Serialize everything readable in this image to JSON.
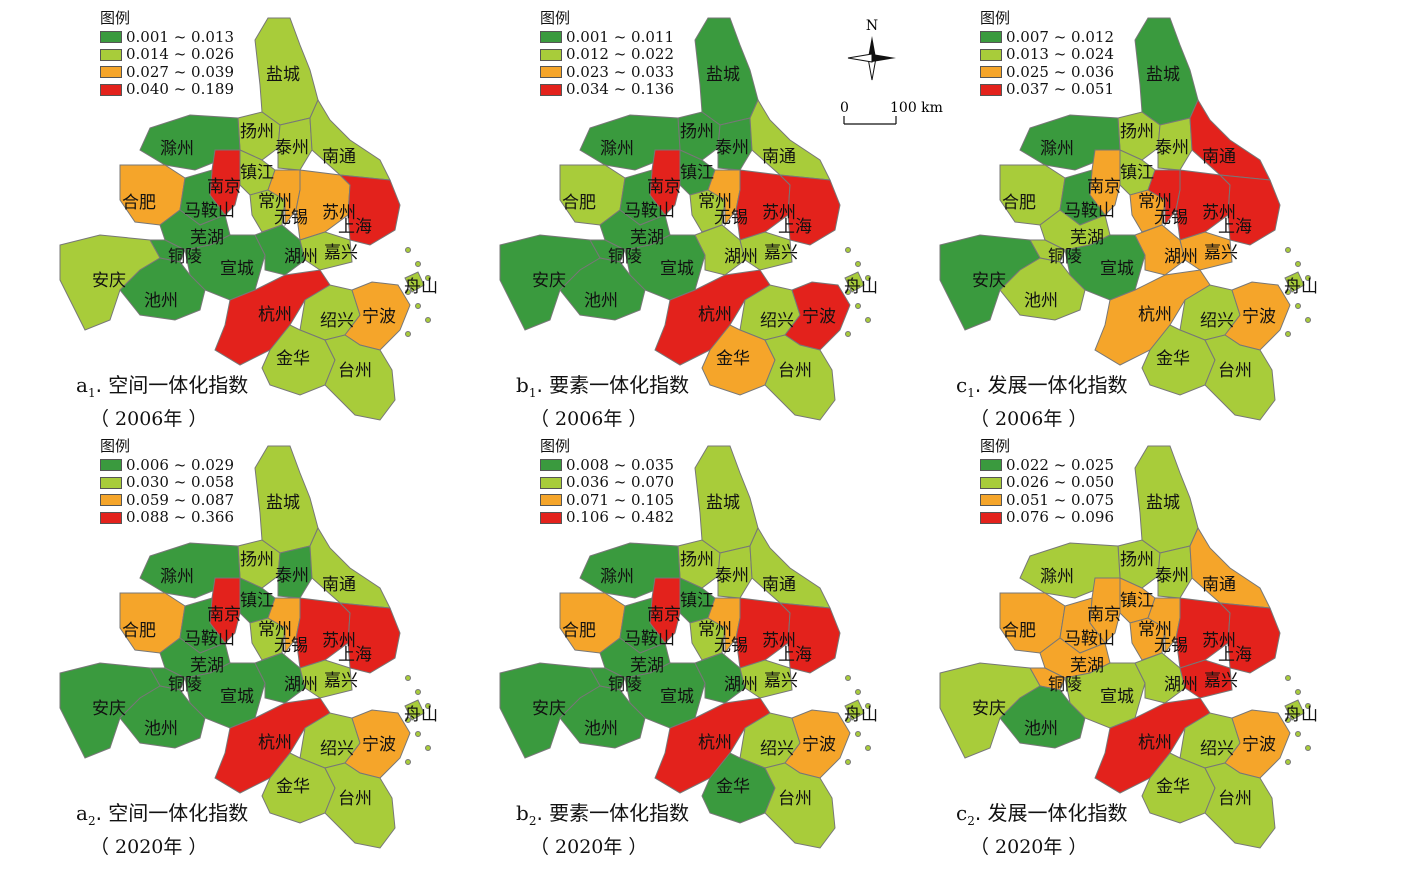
{
  "colors": {
    "c1": "#3a9a3e",
    "c2": "#a8cc3a",
    "c3": "#f5a52a",
    "c4": "#e3221c",
    "border": "#777777",
    "sea": "#ffffff"
  },
  "legend_title": "图例",
  "compass": {
    "north": "N",
    "scale_start": "0",
    "scale_end": "100 km"
  },
  "cities": [
    "盐城",
    "扬州",
    "泰州",
    "南通",
    "滁州",
    "南京",
    "镇江",
    "常州",
    "合肥",
    "马鞍山",
    "无锡",
    "苏州",
    "上海",
    "芜湖",
    "铜陵",
    "宣城",
    "湖州",
    "嘉兴",
    "安庆",
    "池州",
    "杭州",
    "绍兴",
    "宁波",
    "舟山",
    "金华",
    "台州"
  ],
  "panels": [
    {
      "id": "a1",
      "prefix": "a",
      "sub": "1",
      "title": ". 空间一体化指数",
      "year": "（ 2006年 ）",
      "legend": [
        "0.001 ~ 0.013",
        "0.014 ~ 0.026",
        "0.027 ~ 0.039",
        "0.040 ~ 0.189"
      ],
      "classes": {
        "盐城": 2,
        "扬州": 2,
        "泰州": 2,
        "南通": 2,
        "滁州": 1,
        "南京": 4,
        "镇江": 2,
        "常州": 2,
        "合肥": 3,
        "马鞍山": 1,
        "无锡": 3,
        "苏州": 3,
        "上海": 4,
        "芜湖": 1,
        "铜陵": 1,
        "宣城": 1,
        "湖州": 1,
        "嘉兴": 2,
        "安庆": 2,
        "池州": 1,
        "杭州": 4,
        "绍兴": 2,
        "宁波": 3,
        "舟山": 2,
        "金华": 2,
        "台州": 2
      }
    },
    {
      "id": "b1",
      "prefix": "b",
      "sub": "1",
      "title": ". 要素一体化指数",
      "year": "（ 2006年 ）",
      "legend": [
        "0.001 ~ 0.011",
        "0.012 ~ 0.022",
        "0.023 ~ 0.033",
        "0.034 ~ 0.136"
      ],
      "classes": {
        "盐城": 1,
        "扬州": 1,
        "泰州": 1,
        "南通": 2,
        "滁州": 1,
        "南京": 4,
        "镇江": 1,
        "常州": 2,
        "合肥": 2,
        "马鞍山": 1,
        "无锡": 3,
        "苏州": 4,
        "上海": 4,
        "芜湖": 1,
        "铜陵": 1,
        "宣城": 1,
        "湖州": 2,
        "嘉兴": 2,
        "安庆": 1,
        "池州": 1,
        "杭州": 4,
        "绍兴": 2,
        "宁波": 4,
        "舟山": 2,
        "金华": 3,
        "台州": 2
      }
    },
    {
      "id": "c1",
      "prefix": "c",
      "sub": "1",
      "title": ". 发展一体化指数",
      "year": "（ 2006年 ）",
      "legend": [
        "0.007 ~ 0.012",
        "0.013 ~ 0.024",
        "0.025 ~ 0.036",
        "0.037 ~ 0.051"
      ],
      "classes": {
        "盐城": 1,
        "扬州": 2,
        "泰州": 2,
        "南通": 4,
        "滁州": 1,
        "南京": 3,
        "镇江": 2,
        "常州": 3,
        "合肥": 2,
        "马鞍山": 1,
        "无锡": 4,
        "苏州": 4,
        "上海": 4,
        "芜湖": 2,
        "铜陵": 2,
        "宣城": 1,
        "湖州": 3,
        "嘉兴": 3,
        "安庆": 1,
        "池州": 2,
        "杭州": 3,
        "绍兴": 2,
        "宁波": 3,
        "舟山": 2,
        "金华": 2,
        "台州": 2
      }
    },
    {
      "id": "a2",
      "prefix": "a",
      "sub": "2",
      "title": ". 空间一体化指数",
      "year": "（ 2020年 ）",
      "legend": [
        "0.006 ~ 0.029",
        "0.030 ~ 0.058",
        "0.059 ~ 0.087",
        "0.088 ~ 0.366"
      ],
      "classes": {
        "盐城": 2,
        "扬州": 2,
        "泰州": 1,
        "南通": 2,
        "滁州": 1,
        "南京": 4,
        "镇江": 1,
        "常州": 2,
        "合肥": 3,
        "马鞍山": 1,
        "无锡": 3,
        "苏州": 4,
        "上海": 4,
        "芜湖": 1,
        "铜陵": 1,
        "宣城": 1,
        "湖州": 1,
        "嘉兴": 2,
        "安庆": 1,
        "池州": 1,
        "杭州": 4,
        "绍兴": 2,
        "宁波": 3,
        "舟山": 2,
        "金华": 2,
        "台州": 2
      }
    },
    {
      "id": "b2",
      "prefix": "b",
      "sub": "2",
      "title": ". 要素一体化指数",
      "year": "（ 2020年 ）",
      "legend": [
        "0.008 ~ 0.035",
        "0.036 ~ 0.070",
        "0.071 ~ 0.105",
        "0.106 ~ 0.482"
      ],
      "classes": {
        "盐城": 2,
        "扬州": 2,
        "泰州": 2,
        "南通": 2,
        "滁州": 1,
        "南京": 4,
        "镇江": 1,
        "常州": 2,
        "合肥": 3,
        "马鞍山": 1,
        "无锡": 3,
        "苏州": 4,
        "上海": 4,
        "芜湖": 1,
        "铜陵": 1,
        "宣城": 1,
        "湖州": 1,
        "嘉兴": 2,
        "安庆": 1,
        "池州": 1,
        "杭州": 4,
        "绍兴": 2,
        "宁波": 3,
        "舟山": 2,
        "金华": 1,
        "台州": 2
      }
    },
    {
      "id": "c2",
      "prefix": "c",
      "sub": "2",
      "title": ". 发展一体化指数",
      "year": "（ 2020年 ）",
      "legend": [
        "0.022 ~ 0.025",
        "0.026 ~ 0.050",
        "0.051 ~ 0.075",
        "0.076 ~ 0.096"
      ],
      "classes": {
        "盐城": 2,
        "扬州": 2,
        "泰州": 2,
        "南通": 3,
        "滁州": 2,
        "南京": 3,
        "镇江": 3,
        "常州": 3,
        "合肥": 3,
        "马鞍山": 3,
        "无锡": 3,
        "苏州": 4,
        "上海": 4,
        "芜湖": 3,
        "铜陵": 3,
        "宣城": 2,
        "湖州": 2,
        "嘉兴": 4,
        "安庆": 2,
        "池州": 1,
        "杭州": 4,
        "绍兴": 2,
        "宁波": 3,
        "舟山": 2,
        "金华": 2,
        "台州": 2
      }
    }
  ]
}
